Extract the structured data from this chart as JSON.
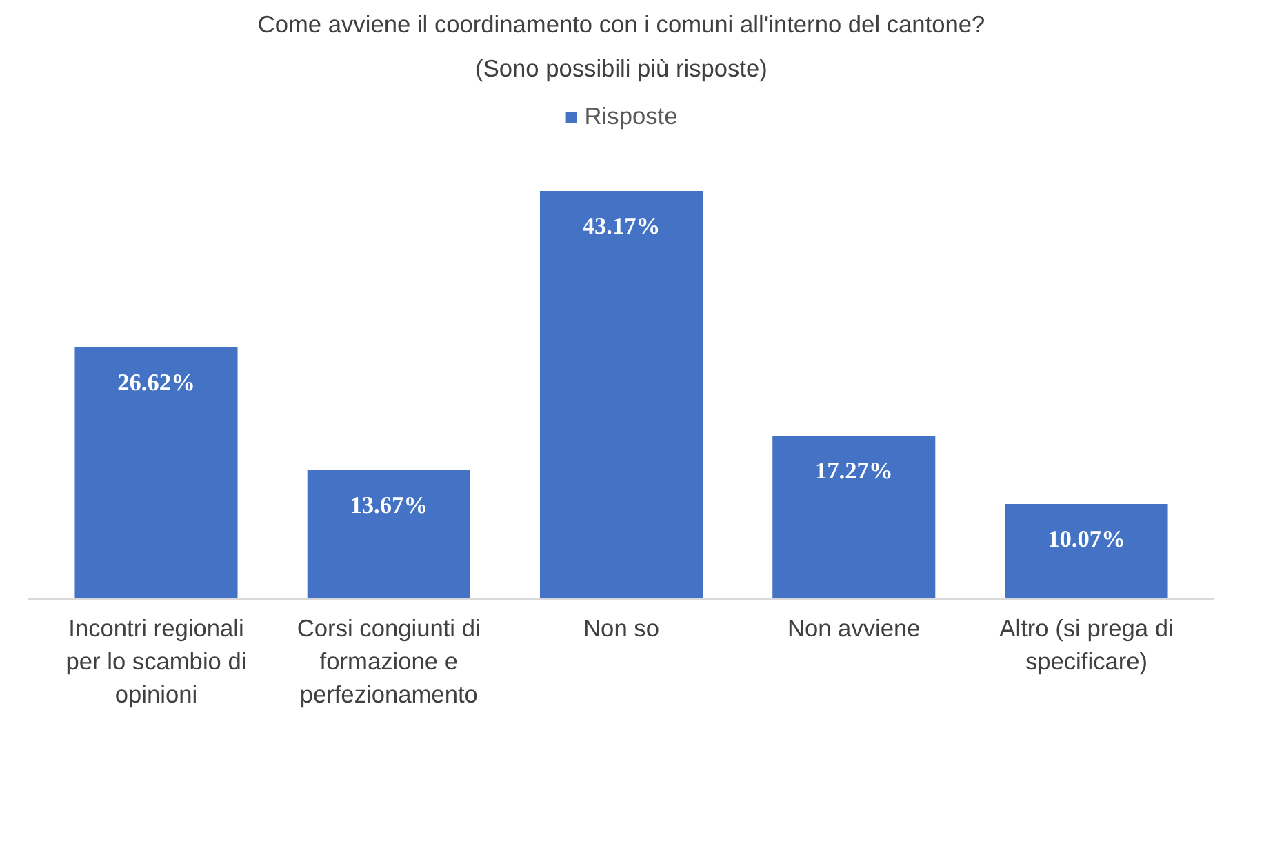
{
  "chart_data": {
    "type": "bar",
    "title": "Come avviene il coordinamento con i comuni all'interno del cantone?",
    "subtitle": "(Sono possibili più risposte)",
    "categories": [
      "Incontri regionali\nper lo scambio di\nopinioni",
      "Corsi congiunti di\nformazione e\nperfezionamento",
      "Non so",
      "Non avviene",
      "Altro (si prega di\nspecificare)"
    ],
    "series": [
      {
        "name": "Risposte",
        "color": "#4472c4",
        "values": [
          26.62,
          13.67,
          43.17,
          17.27,
          10.07
        ],
        "value_labels": [
          "26.62%",
          "13.67%",
          "43.17%",
          "17.27%",
          "10.07%"
        ]
      }
    ],
    "legend": "top",
    "tick_labels": "x"
  }
}
